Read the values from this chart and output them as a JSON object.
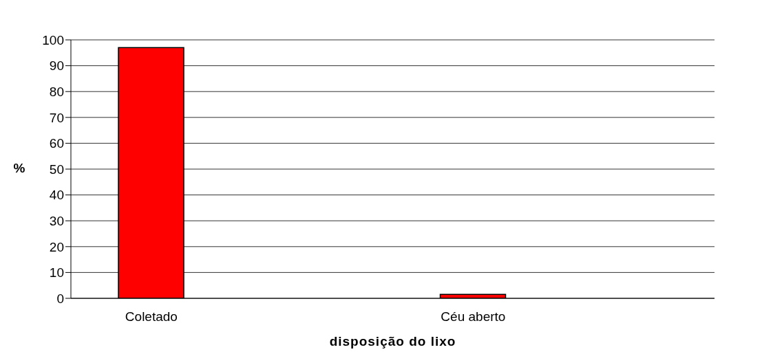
{
  "chart_data": {
    "type": "bar",
    "xlabel": "disposição do lixo",
    "ylabel": "%",
    "categories": [
      "Coletado",
      null,
      "Céu aberto",
      null
    ],
    "values": [
      97,
      0,
      1.5,
      0
    ],
    "color": "#ff0000",
    "ylim": [
      0,
      100
    ],
    "yticks": [
      0,
      10,
      20,
      30,
      40,
      50,
      60,
      70,
      80,
      90,
      100
    ],
    "grid": "y"
  }
}
